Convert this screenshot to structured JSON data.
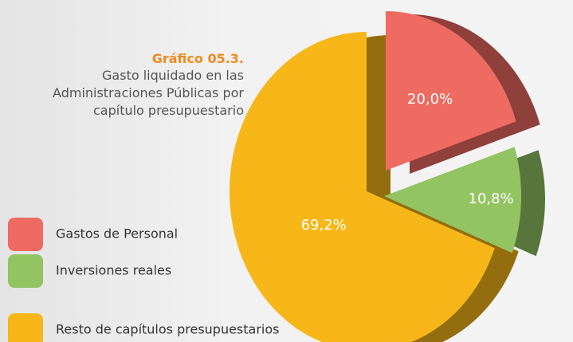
{
  "chart_data": {
    "type": "pie",
    "title": "Gráfico 05.3.",
    "subtitle": "Gasto liquidado en las Administraciones Públicas por capítulo presupuestario",
    "categories": [
      "Gastos de Personal",
      "Inversiones reales",
      "Resto de capítulos presupuestarios"
    ],
    "values": [
      20.0,
      10.8,
      69.2
    ],
    "value_labels": [
      "20,0%",
      "10,8%",
      "69,2%"
    ],
    "colors": [
      "#ee6b62",
      "#93c462",
      "#f7b718"
    ],
    "legend": "left"
  }
}
